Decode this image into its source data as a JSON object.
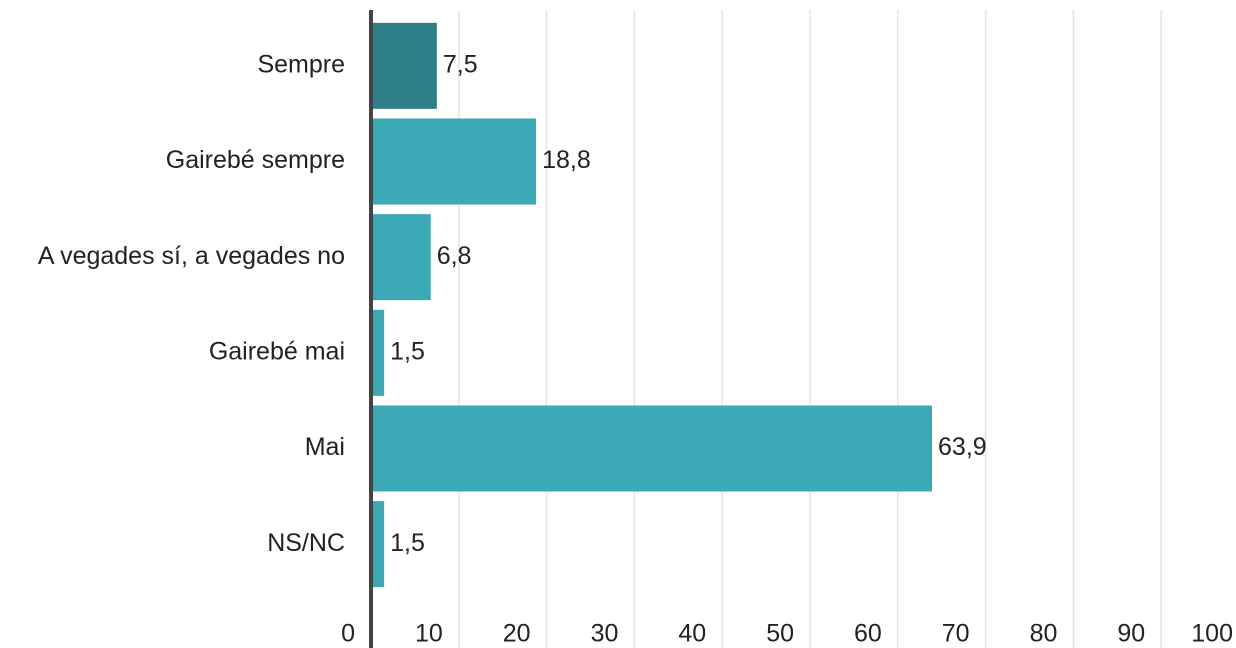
{
  "chart_data": {
    "type": "barh",
    "categories": [
      "Sempre",
      "Gairebé sempre",
      "A vegades sí, a vegades no",
      "Gairebé mai",
      "Mai",
      "NS/NC"
    ],
    "values": [
      7.5,
      18.8,
      6.8,
      1.5,
      63.9,
      1.5
    ],
    "value_labels": [
      "7,5",
      "18,8",
      "6,8",
      "1,5",
      "63,9",
      "1,5"
    ],
    "colors": [
      "#2e7f87",
      "#3ba8b5",
      "#3ba8b5",
      "#3ba8b5",
      "#3ba8b5",
      "#3ba8b5"
    ],
    "xlim": [
      0,
      100
    ],
    "xticks": [
      0,
      10,
      20,
      30,
      40,
      50,
      60,
      70,
      80,
      90,
      100
    ],
    "grid": true
  }
}
